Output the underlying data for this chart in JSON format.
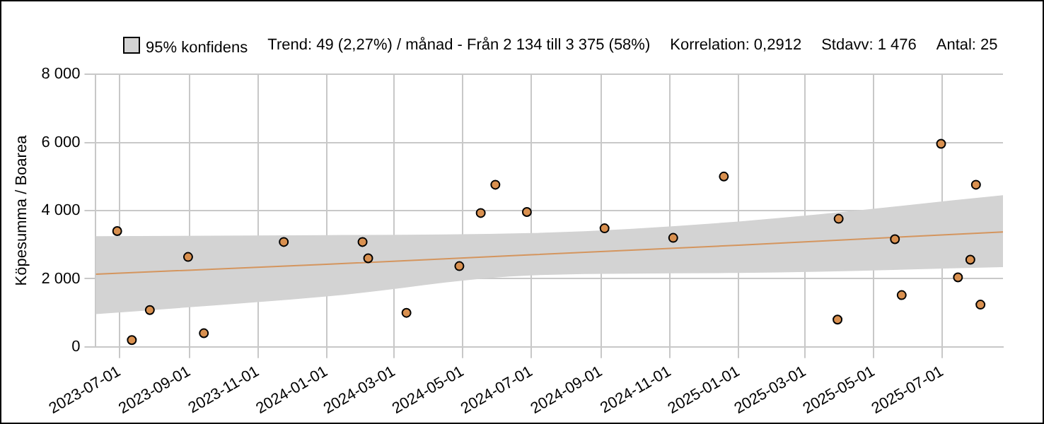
{
  "chart_data": {
    "type": "scatter",
    "ylabel": "Köpesumma / Boarea",
    "legend_title": "95% konfidens",
    "annotations": [
      "Trend: 49 (2,27%) / månad  -  Från 2 134 till 3 375 (58%)",
      "Korrelation: 0,2912",
      "Stdavv: 1 476",
      "Antal: 25"
    ],
    "series": [
      {
        "type": "line",
        "color": "#d4955e",
        "x": [
          "2023-06-10",
          "2024-01-01",
          "2024-07-01",
          "2025-01-01",
          "2025-08-24"
        ],
        "values": [
          2134,
          2423,
          2702,
          2986,
          3375
        ],
        "marker": "none",
        "lower": [
          960,
          1480,
          2100,
          2170,
          2340
        ],
        "upper": [
          3250,
          3280,
          3340,
          3680,
          4450
        ]
      },
      {
        "color": "#d9904f",
        "x": [
          "2023-06-29",
          "2023-07-12",
          "2023-07-28",
          "2023-08-31",
          "2023-09-14",
          "2023-11-24",
          "2024-02-02",
          "2024-02-07",
          "2024-03-12",
          "2024-04-28",
          "2024-05-17",
          "2024-05-30",
          "2024-06-27",
          "2024-09-04",
          "2024-11-04",
          "2024-12-19",
          "2025-03-31",
          "2025-03-30",
          "2025-05-20",
          "2025-05-26",
          "2025-06-30",
          "2025-07-15",
          "2025-07-26",
          "2025-07-31",
          "2025-08-04"
        ],
        "values": [
          3400,
          200,
          1080,
          2640,
          400,
          3080,
          3080,
          2600,
          1000,
          2370,
          3930,
          4760,
          3960,
          3480,
          3200,
          5000,
          3760,
          800,
          3160,
          1520,
          5960,
          2040,
          2560,
          4760,
          1240
        ]
      }
    ],
    "xlim": [
      "2023-06-10",
      "2025-08-24"
    ],
    "xticks": [
      "2023-07-01",
      "2023-09-01",
      "2023-11-01",
      "2024-01-01",
      "2024-03-01",
      "2024-05-01",
      "2024-07-01",
      "2024-09-01",
      "2024-11-01",
      "2025-01-01",
      "2025-03-01",
      "2025-05-01",
      "2025-07-01"
    ],
    "ylim": [
      0,
      8000
    ],
    "yticks": [
      {
        "value": 0,
        "label": "0"
      },
      {
        "value": 2000,
        "label": "2 000"
      },
      {
        "value": 4000,
        "label": "4 000"
      },
      {
        "value": 6000,
        "label": "6 000"
      },
      {
        "value": 8000,
        "label": "8 000"
      }
    ],
    "grid": true,
    "marker": "circle",
    "line_style": "solid"
  }
}
